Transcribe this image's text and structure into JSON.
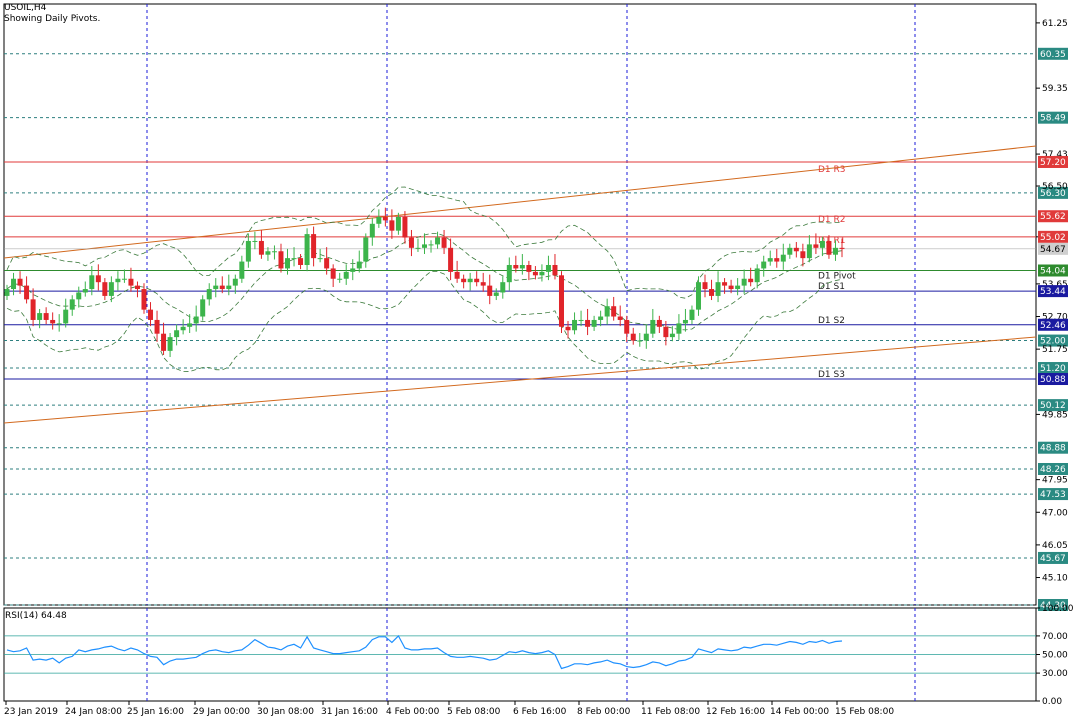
{
  "header": {
    "symbol": "USOIL,H4",
    "subtitle": "Showing Daily Pivots."
  },
  "colors": {
    "bull": "#3cb44b",
    "bear": "#e0242a",
    "grid": "#1b1bd8",
    "price_grid": "#2d7f7f",
    "trendline": "#d2691e",
    "bands": "#3c7a3c",
    "rsi": "#1e90ff",
    "label_teal": "#2a8a82",
    "label_red": "#e03a3a",
    "pivot_red": "#e03a3a",
    "pivot_green": "#2e8b2e",
    "pivot_blue": "#1a1aa0"
  },
  "y_axis_labels": [
    "61.25",
    "59.35",
    "57.43",
    "56.50",
    "55.02",
    "53.65",
    "52.70",
    "51.75",
    "49.85",
    "47.95",
    "47.00",
    "46.05",
    "45.10"
  ],
  "price_levels": [
    "60.35",
    "58.49",
    "56.30",
    "52.00",
    "51.20",
    "50.12",
    "48.88",
    "48.26",
    "47.53",
    "45.67",
    "44.30"
  ],
  "pivots": [
    {
      "name": "D1 R3",
      "value": "57.20",
      "color": "red"
    },
    {
      "name": "D1 R2",
      "value": "55.62",
      "color": "red"
    },
    {
      "name": "D1 R1",
      "value": "55.02",
      "color": "red"
    },
    {
      "name": "D1 Pivot",
      "value": "54.04",
      "color": "green"
    },
    {
      "name": "D1 S1",
      "value": "53.44",
      "color": "blue"
    },
    {
      "name": "D1 S2",
      "value": "52.46",
      "color": "blue"
    },
    {
      "name": "D1 S3",
      "value": "50.88",
      "color": "blue"
    }
  ],
  "current_price": "54.67",
  "x_axis_labels": [
    "23 Jan 2019",
    "24 Jan 08:00",
    "25 Jan 16:00",
    "29 Jan 00:00",
    "30 Jan 08:00",
    "31 Jan 16:00",
    "4 Feb 00:00",
    "5 Feb 08:00",
    "6 Feb 16:00",
    "8 Feb 00:00",
    "11 Feb 08:00",
    "12 Feb 16:00",
    "14 Feb 00:00",
    "15 Feb 08:00"
  ],
  "rsi": {
    "label": "RSI(14) 64.48",
    "axis_labels": [
      "100.00",
      "70.00",
      "50.00",
      "30.00",
      "0.00"
    ]
  },
  "chart_data": {
    "type": "candlestick",
    "title": "USOIL,H4",
    "subtitle": "Showing Daily Pivots.",
    "ylim": [
      44.3,
      61.8
    ],
    "closes": [
      53.5,
      53.8,
      53.6,
      53.2,
      52.6,
      52.8,
      52.6,
      52.5,
      52.5,
      52.9,
      53.2,
      53.4,
      53.5,
      53.9,
      53.7,
      53.3,
      53.7,
      53.8,
      53.8,
      53.6,
      53.5,
      52.9,
      52.6,
      52.2,
      51.7,
      52.1,
      52.3,
      52.4,
      52.5,
      52.7,
      53.2,
      53.5,
      53.6,
      53.5,
      53.6,
      53.8,
      54.3,
      54.9,
      54.9,
      54.5,
      54.6,
      54.6,
      54.1,
      54.4,
      54.4,
      54.2,
      55.1,
      54.4,
      54.4,
      54.1,
      53.8,
      53.8,
      54.0,
      54.1,
      54.3,
      55.0,
      55.4,
      55.6,
      55.5,
      55.2,
      55.6,
      55.0,
      54.7,
      54.7,
      54.8,
      54.8,
      55.0,
      54.7,
      54.0,
      53.8,
      53.7,
      53.8,
      53.7,
      53.6,
      53.3,
      53.4,
      53.7,
      54.2,
      54.1,
      54.2,
      54.0,
      53.9,
      54.0,
      54.2,
      53.9,
      52.4,
      52.3,
      52.6,
      52.6,
      52.4,
      52.6,
      52.7,
      53.0,
      52.7,
      52.6,
      52.2,
      52.0,
      52.0,
      52.2,
      52.6,
      52.4,
      52.1,
      52.2,
      52.5,
      52.6,
      52.9,
      53.7,
      53.5,
      53.3,
      53.7,
      53.6,
      53.5,
      53.6,
      53.8,
      53.7,
      54.1,
      54.3,
      54.4,
      54.3,
      54.5,
      54.7,
      54.6,
      54.4,
      54.8,
      54.7,
      54.9,
      54.5,
      54.7,
      54.67
    ],
    "rsi_values": [
      55,
      53,
      54,
      57,
      44,
      45,
      44,
      46,
      41,
      46,
      48,
      55,
      53,
      55,
      56,
      58,
      59,
      56,
      54,
      57,
      55,
      51,
      48,
      47,
      39,
      43,
      45,
      45,
      46,
      47,
      51,
      54,
      55,
      53,
      52,
      54,
      55,
      60,
      66,
      62,
      58,
      57,
      55,
      59,
      61,
      57,
      69,
      57,
      55,
      53,
      51,
      51,
      52,
      53,
      54,
      58,
      66,
      69,
      69,
      63,
      70,
      57,
      55,
      55,
      56,
      56,
      57,
      52,
      48,
      47,
      47,
      48,
      47,
      46,
      44,
      45,
      49,
      53,
      52,
      54,
      52,
      51,
      52,
      54,
      50,
      35,
      37,
      40,
      40,
      39,
      41,
      42,
      44,
      41,
      40,
      37,
      36,
      37,
      39,
      42,
      41,
      38,
      40,
      43,
      44,
      47,
      56,
      54,
      52,
      56,
      55,
      54,
      55,
      58,
      57,
      59,
      61,
      61,
      60,
      62,
      64,
      63,
      61,
      64,
      63,
      65,
      62,
      64,
      64.48
    ]
  }
}
